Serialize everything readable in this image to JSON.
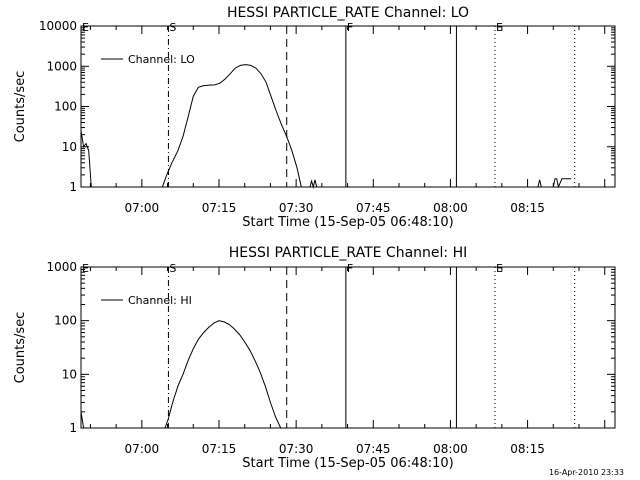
{
  "chart_data": [
    {
      "type": "line",
      "title": "HESSI PARTICLE_RATE Channel: LO",
      "xlabel": "Start Time (15-Sep-05 06:48:10)",
      "ylabel": "Counts/sec",
      "y_scale": "log",
      "ylim": [
        1,
        10000
      ],
      "xlim": [
        "06:48:10",
        "08:32:00"
      ],
      "x_ticks": [
        "07:00",
        "07:15",
        "07:30",
        "07:45",
        "08:00",
        "08:15"
      ],
      "y_ticks": [
        "1",
        "10",
        "100",
        "1000",
        "10000"
      ],
      "legend": {
        "position": "top-left",
        "entries": [
          "Channel: LO"
        ]
      },
      "markers": [
        {
          "label": "E",
          "time": "06:48:10",
          "style": "solid"
        },
        {
          "label": "S",
          "time": "07:05:10",
          "style": "dashdot"
        },
        {
          "label": "",
          "time": "07:28:10",
          "style": "dashed"
        },
        {
          "label": "F",
          "time": "07:39:40",
          "style": "solid"
        },
        {
          "label": "",
          "time": "08:01:10",
          "style": "solid"
        },
        {
          "label": "E",
          "time": "08:08:40",
          "style": "dotted"
        },
        {
          "label": "",
          "time": "08:24:10",
          "style": "dotted"
        }
      ],
      "series": [
        {
          "name": "Channel: LO",
          "segments": [
            [
              [
                "06:48:10",
                25
              ],
              [
                "06:48:40",
                10
              ],
              [
                "06:49:10",
                12
              ],
              [
                "06:49:40",
                8
              ],
              [
                "06:50:10",
                1
              ]
            ],
            [
              [
                "07:04:00",
                1
              ],
              [
                "07:04:50",
                2
              ],
              [
                "07:05:50",
                4
              ],
              [
                "07:07:00",
                8
              ],
              [
                "07:08:00",
                18
              ],
              [
                "07:09:00",
                55
              ],
              [
                "07:10:00",
                180
              ],
              [
                "07:11:00",
                300
              ],
              [
                "07:12:00",
                330
              ],
              [
                "07:13:10",
                340
              ],
              [
                "07:14:10",
                345
              ],
              [
                "07:15:10",
                380
              ],
              [
                "07:16:10",
                480
              ],
              [
                "07:17:10",
                650
              ],
              [
                "07:18:10",
                900
              ],
              [
                "07:19:10",
                1050
              ],
              [
                "07:20:10",
                1100
              ],
              [
                "07:21:10",
                1050
              ],
              [
                "07:22:10",
                900
              ],
              [
                "07:23:10",
                650
              ],
              [
                "07:24:10",
                400
              ],
              [
                "07:25:10",
                170
              ],
              [
                "07:26:10",
                75
              ],
              [
                "07:27:10",
                35
              ],
              [
                "07:28:10",
                18
              ],
              [
                "07:29:10",
                8
              ],
              [
                "07:30:10",
                3
              ],
              [
                "07:31:00",
                1
              ]
            ],
            [
              [
                "07:32:40",
                1
              ],
              [
                "07:33:00",
                1.4
              ],
              [
                "07:33:20",
                1
              ],
              [
                "07:33:40",
                1.5
              ],
              [
                "07:34:00",
                1
              ]
            ],
            [
              [
                "08:17:00",
                1
              ],
              [
                "08:17:20",
                1.5
              ],
              [
                "08:17:40",
                1
              ]
            ],
            [
              [
                "08:20:00",
                1
              ],
              [
                "08:20:20",
                1.6
              ],
              [
                "08:20:40",
                1.6
              ],
              [
                "08:21:00",
                1
              ],
              [
                "08:21:40",
                1.6
              ],
              [
                "08:23:30",
                1.6
              ]
            ]
          ]
        }
      ]
    },
    {
      "type": "line",
      "title": "HESSI PARTICLE_RATE Channel: HI",
      "xlabel": "Start Time (15-Sep-05 06:48:10)",
      "ylabel": "Counts/sec",
      "y_scale": "log",
      "ylim": [
        1,
        1000
      ],
      "xlim": [
        "06:48:10",
        "08:32:00"
      ],
      "x_ticks": [
        "07:00",
        "07:15",
        "07:30",
        "07:45",
        "08:00",
        "08:15"
      ],
      "y_ticks": [
        "1",
        "10",
        "100",
        "1000"
      ],
      "legend": {
        "position": "top-left",
        "entries": [
          "Channel: HI"
        ]
      },
      "markers": [
        {
          "label": "E",
          "time": "06:48:10",
          "style": "solid"
        },
        {
          "label": "S",
          "time": "07:05:10",
          "style": "dashdot"
        },
        {
          "label": "",
          "time": "07:28:10",
          "style": "dashed"
        },
        {
          "label": "F",
          "time": "07:39:40",
          "style": "solid"
        },
        {
          "label": "",
          "time": "08:01:10",
          "style": "solid"
        },
        {
          "label": "E",
          "time": "08:08:40",
          "style": "dotted"
        },
        {
          "label": "",
          "time": "08:24:10",
          "style": "dotted"
        }
      ],
      "series": [
        {
          "name": "Channel: HI",
          "segments": [
            [
              [
                "06:48:10",
                2
              ],
              [
                "06:48:40",
                1
              ]
            ],
            [
              [
                "07:04:30",
                1
              ],
              [
                "07:05:10",
                1.5
              ],
              [
                "07:06:00",
                3
              ],
              [
                "07:07:00",
                6
              ],
              [
                "07:08:00",
                10
              ],
              [
                "07:09:00",
                18
              ],
              [
                "07:10:00",
                30
              ],
              [
                "07:11:00",
                45
              ],
              [
                "07:12:00",
                60
              ],
              [
                "07:13:00",
                75
              ],
              [
                "07:14:00",
                90
              ],
              [
                "07:15:00",
                100
              ],
              [
                "07:16:00",
                95
              ],
              [
                "07:17:00",
                85
              ],
              [
                "07:18:00",
                70
              ],
              [
                "07:19:00",
                55
              ],
              [
                "07:20:00",
                40
              ],
              [
                "07:21:00",
                28
              ],
              [
                "07:22:00",
                18
              ],
              [
                "07:23:00",
                11
              ],
              [
                "07:24:00",
                6
              ],
              [
                "07:25:00",
                3
              ],
              [
                "07:26:00",
                1.6
              ],
              [
                "07:27:00",
                1
              ]
            ]
          ]
        }
      ]
    }
  ],
  "footer": {
    "timestamp": "16-Apr-2010 23:33"
  },
  "colors": {
    "ink": "#000000",
    "background": "#ffffff"
  }
}
